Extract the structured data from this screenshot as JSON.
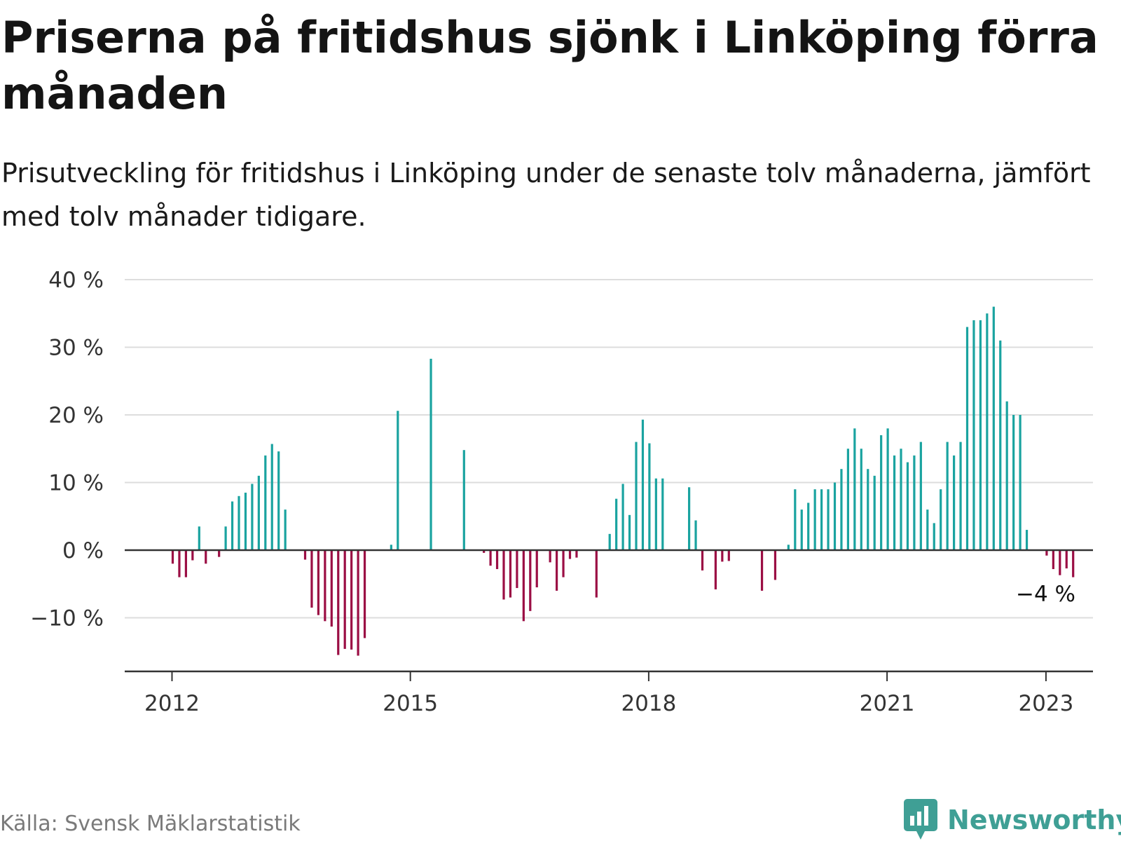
{
  "title": "Priserna på fritidshus sjönk i Linköping förra månaden",
  "subtitle": "Prisutveckling för fritidshus i Linköping under de senaste tolv månaderna, jämfört med tolv månader tidigare.",
  "source": "Källa: Svensk Mäklarstatistik",
  "brand": "Newsworthy",
  "colors": {
    "positive": "#1aa3a0",
    "negative": "#9b0e44",
    "grid": "#dddddd",
    "axis": "#333333",
    "brand": "#3f9f95"
  },
  "chart_data": {
    "type": "bar",
    "x_start": "2012-01",
    "ylim": [
      -18,
      40
    ],
    "yticks": [
      40,
      30,
      20,
      10,
      0,
      -10
    ],
    "ytick_labels": [
      "40 %",
      "30 %",
      "20 %",
      "10 %",
      "0 %",
      "−10 %"
    ],
    "xticks": [
      {
        "year": 2012,
        "label": "2012"
      },
      {
        "year": 2015,
        "label": "2015"
      },
      {
        "year": 2018,
        "label": "2018"
      },
      {
        "year": 2021,
        "label": "2021"
      },
      {
        "year": 2023,
        "label": "2023"
      }
    ],
    "last_value_label": "−4 %",
    "values": [
      -2,
      -4,
      -4,
      -1.5,
      3.5,
      -2,
      0,
      -1,
      3.5,
      7.2,
      8,
      8.5,
      9.8,
      11,
      14,
      15.7,
      14.6,
      6,
      null,
      null,
      -1.4,
      -8.5,
      -9.6,
      -10.5,
      -11.3,
      -15.5,
      -14.6,
      -14.7,
      -15.6,
      -13,
      null,
      null,
      null,
      0.8,
      20.6,
      null,
      null,
      null,
      null,
      28.3,
      null,
      null,
      null,
      null,
      14.8,
      null,
      null,
      -0.4,
      -2.3,
      -2.8,
      -7.3,
      -7,
      -5.6,
      -10.5,
      -9,
      -5.5,
      null,
      -1.8,
      -6,
      -4,
      -1.3,
      -1.1,
      null,
      null,
      -7,
      null,
      2.4,
      7.6,
      9.8,
      5.2,
      16,
      19.3,
      15.8,
      10.6,
      10.6,
      null,
      null,
      null,
      9.3,
      4.4,
      -3,
      null,
      -5.8,
      -1.7,
      -1.6,
      null,
      null,
      null,
      null,
      -6,
      null,
      -4.4,
      null,
      0.8,
      9,
      6,
      7,
      9,
      9,
      9,
      10,
      12,
      15,
      18,
      15,
      12,
      11,
      17,
      18,
      14,
      15,
      13,
      14,
      16,
      6,
      4,
      9,
      16,
      14,
      16,
      33,
      34,
      34,
      35,
      36,
      31,
      22,
      20,
      20,
      3,
      null,
      null,
      -0.8,
      -2.8,
      -3.7,
      -2.7,
      -4
    ]
  }
}
